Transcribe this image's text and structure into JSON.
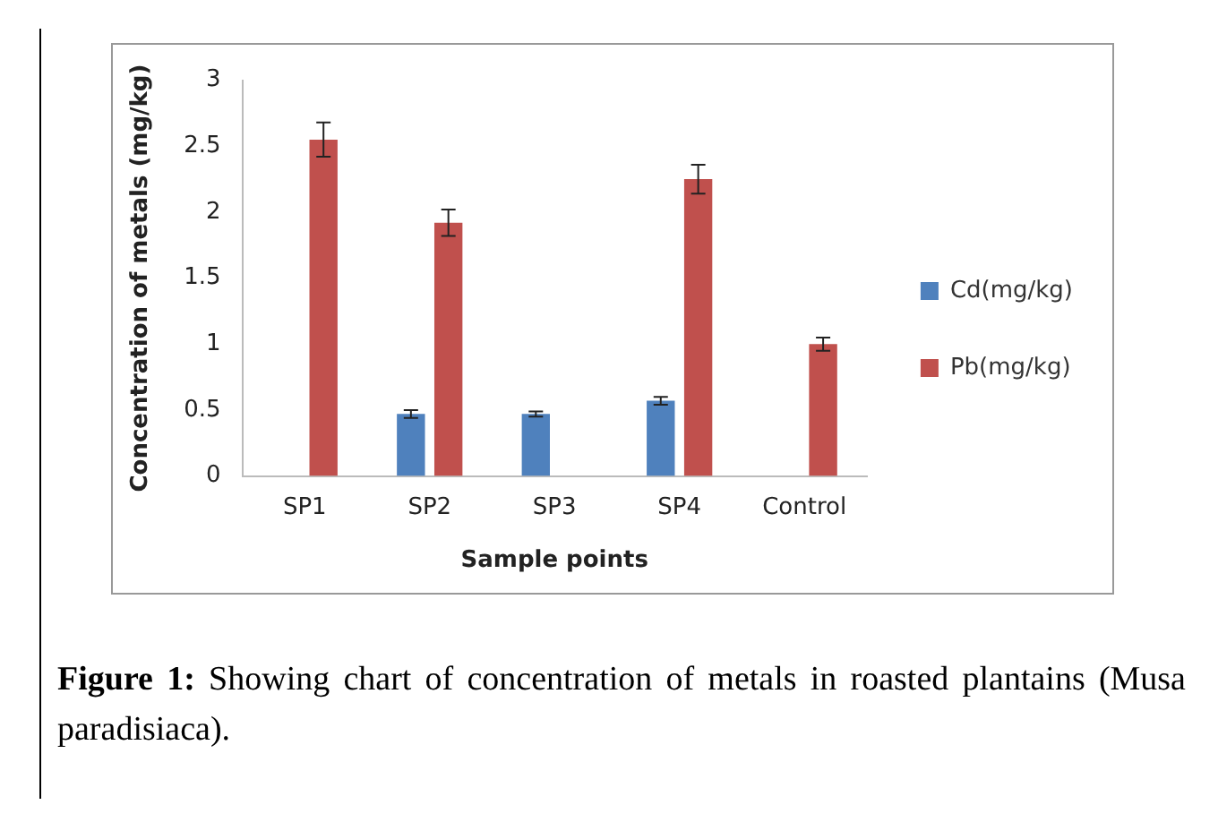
{
  "chart_data": {
    "type": "bar",
    "xlabel": "Sample points",
    "ylabel": "Concentration of metals (mg/kg)",
    "categories": [
      "SP1",
      "SP2",
      "SP3",
      "SP4",
      "Control"
    ],
    "series": [
      {
        "name": "Cd(mg/kg)",
        "color": "#4f81bd",
        "values": [
          null,
          0.47,
          0.47,
          0.57,
          null
        ],
        "errors": [
          null,
          0.03,
          0.02,
          0.03,
          null
        ]
      },
      {
        "name": "Pb(mg/kg)",
        "color": "#c0504d",
        "values": [
          2.55,
          1.92,
          null,
          2.25,
          1.0
        ],
        "errors": [
          0.13,
          0.1,
          null,
          0.11,
          0.05
        ]
      }
    ],
    "ylim": [
      0,
      3
    ],
    "yticks": [
      0,
      0.5,
      1,
      1.5,
      2,
      2.5,
      3
    ],
    "grid": false,
    "legend": "right",
    "annotations": [
      "Figure 1:",
      "Showing chart of concentration of metals in roasted plantains (Musa paradisiaca)."
    ]
  }
}
